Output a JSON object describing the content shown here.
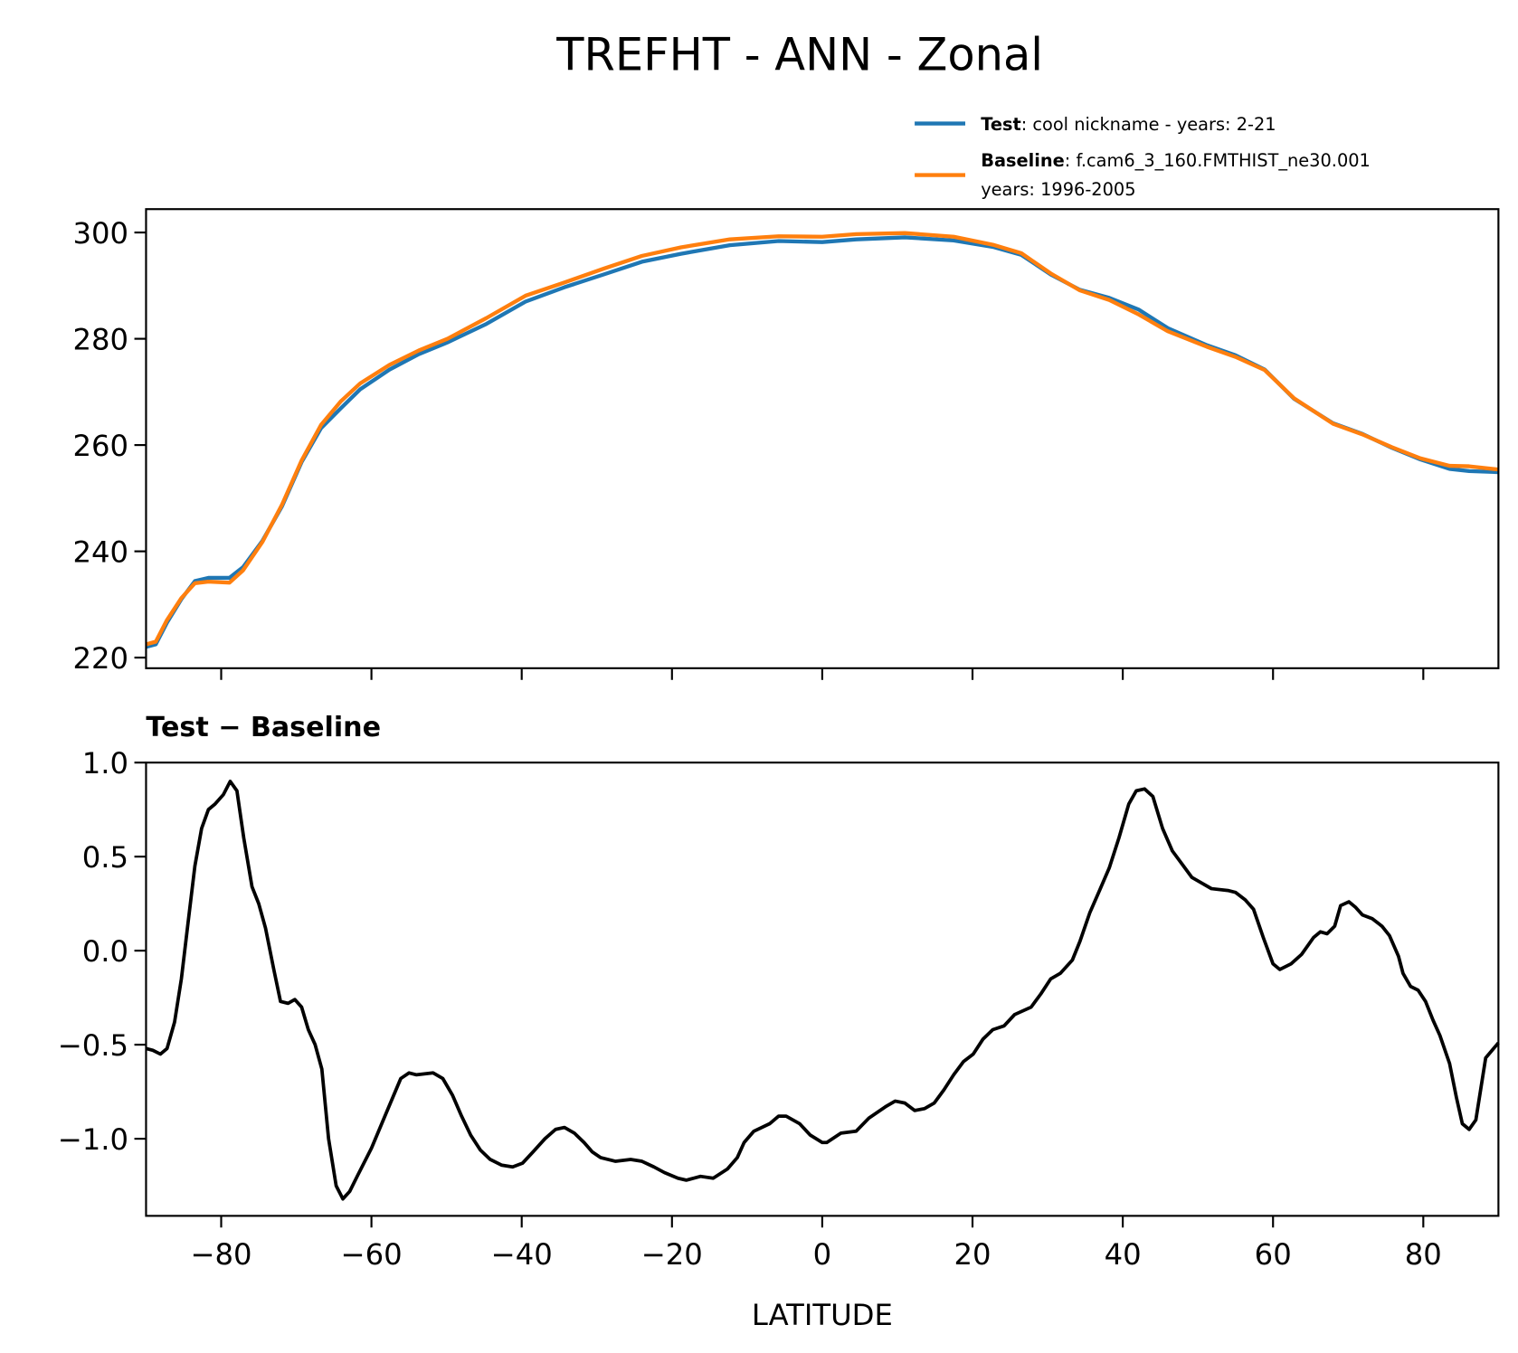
{
  "title": "TREFHT - ANN - Zonal",
  "legend": {
    "test_label": "Test",
    "test_text": ": cool nickname - years: 2-21",
    "baseline_label": "Baseline",
    "baseline_text": ": f.cam6_3_160.FMTHIST_ne30.001",
    "baseline_text2": "years: 1996-2005"
  },
  "colors": {
    "test": "#1f77b4",
    "baseline": "#ff7f0e",
    "diff": "#000000"
  },
  "chart_data": [
    {
      "type": "line",
      "title": "",
      "xlabel": "",
      "ylabel": "",
      "xlim": [
        -90,
        90
      ],
      "ylim": [
        218,
        304.4
      ],
      "xticks": [
        -80,
        -60,
        -40,
        -20,
        0,
        20,
        40,
        60,
        80
      ],
      "yticks": [
        220,
        240,
        260,
        280,
        300
      ],
      "legend_position": "above-right",
      "series": [
        {
          "name": "Test",
          "x": [
            -90,
            -88.7,
            -87.2,
            -85.3,
            -83.5,
            -81.7,
            -78.9,
            -77.1,
            -74.5,
            -71.9,
            -69.3,
            -66.7,
            -64.1,
            -61.5,
            -57.6,
            -53.7,
            -49.9,
            -44.7,
            -39.5,
            -34.3,
            -29.1,
            -24,
            -18.8,
            -12.3,
            -5.8,
            0,
            4.5,
            11,
            17.5,
            22.7,
            26.5,
            30.4,
            34.3,
            38.2,
            42.1,
            46,
            51.2,
            55,
            58.9,
            62.8,
            68,
            71.9,
            75.8,
            79.6,
            83.5,
            86.1,
            90
          ],
          "y": [
            222,
            222.5,
            226.6,
            231,
            234.4,
            235,
            235,
            237,
            242,
            248.5,
            256.8,
            263.2,
            266.9,
            270.5,
            274.2,
            277.1,
            279.3,
            282.8,
            287,
            289.7,
            292.1,
            294.5,
            296,
            297.6,
            298.4,
            298.2,
            298.7,
            299.1,
            298.5,
            297.3,
            295.8,
            292.1,
            289.2,
            287.7,
            285.5,
            282,
            278.8,
            276.9,
            274.2,
            268.7,
            264.1,
            262.1,
            259.5,
            257.3,
            255.5,
            255.1,
            254.9
          ]
        },
        {
          "name": "Baseline",
          "x": [
            -90,
            -88.7,
            -87.2,
            -85.3,
            -83.5,
            -81.7,
            -78.9,
            -77.1,
            -74.5,
            -71.9,
            -69.3,
            -66.7,
            -64.1,
            -61.5,
            -57.6,
            -53.7,
            -49.9,
            -44.7,
            -39.5,
            -34.3,
            -29.1,
            -24,
            -18.8,
            -12.3,
            -5.8,
            0,
            4.5,
            11,
            17.5,
            22.7,
            26.5,
            30.4,
            34.3,
            38.2,
            42.1,
            46,
            51.2,
            55,
            58.9,
            62.8,
            68,
            71.9,
            75.8,
            79.6,
            83.5,
            86.1,
            90
          ],
          "y": [
            222.5,
            223,
            227.1,
            231.2,
            234,
            234.3,
            234.1,
            236.4,
            241.8,
            248.8,
            257.1,
            263.8,
            268.2,
            271.6,
            275.1,
            277.8,
            280,
            283.9,
            288.1,
            290.6,
            293.2,
            295.6,
            297.2,
            298.7,
            299.3,
            299.2,
            299.7,
            299.9,
            299.2,
            297.7,
            296.1,
            292.3,
            289.1,
            287.3,
            284.6,
            281.4,
            278.5,
            276.6,
            274.1,
            268.8,
            264,
            262,
            259.6,
            257.5,
            256.1,
            256,
            255.4
          ]
        }
      ]
    },
    {
      "type": "line",
      "title": "Test − Baseline",
      "xlabel": "LATITUDE",
      "ylabel": "",
      "xlim": [
        -90,
        90
      ],
      "ylim": [
        -1.41,
        1.0
      ],
      "xticks": [
        -80,
        -60,
        -40,
        -20,
        0,
        20,
        40,
        60,
        80
      ],
      "xticklabels": [
        "−80",
        "−60",
        "−40",
        "−20",
        "0",
        "20",
        "40",
        "60",
        "80"
      ],
      "yticks": [
        1.0,
        0.5,
        0.0,
        -0.5,
        -1.0
      ],
      "yticklabels": [
        "1.0",
        "0.5",
        "0.0",
        "−0.5",
        "−1.0"
      ],
      "series": [
        {
          "name": "Test - Baseline",
          "x": [
            -90,
            -89.1,
            -88.1,
            -87.2,
            -86.2,
            -85.3,
            -84.4,
            -83.5,
            -82.6,
            -81.7,
            -80.8,
            -79.7,
            -78.8,
            -77.9,
            -77.0,
            -75.9,
            -75.0,
            -74.1,
            -73.0,
            -72.1,
            -71.1,
            -70.2,
            -69.3,
            -68.4,
            -67.5,
            -66.6,
            -65.7,
            -64.7,
            -63.8,
            -62.9,
            -61.9,
            -60.0,
            -58.0,
            -56.1,
            -55.0,
            -54.0,
            -51.8,
            -50.5,
            -49.2,
            -48.0,
            -46.8,
            -45.5,
            -44.2,
            -42.7,
            -41.2,
            -39.9,
            -38.5,
            -36.9,
            -35.5,
            -34.3,
            -33.0,
            -31.7,
            -30.6,
            -29.5,
            -27.5,
            -25.5,
            -24.0,
            -22.4,
            -21.0,
            -19.2,
            -18.1,
            -17.1,
            -16.2,
            -14.5,
            -12.6,
            -11.3,
            -10.4,
            -9.1,
            -7.0,
            -5.8,
            -4.8,
            -3.0,
            -1.6,
            0,
            0.6,
            2.5,
            4.5,
            6.2,
            8.4,
            9.7,
            11.0,
            12.3,
            13.6,
            14.9,
            16.2,
            17.5,
            18.8,
            20.1,
            21.4,
            22.7,
            24.2,
            25.6,
            27.8,
            29.1,
            30.4,
            31.7,
            33.3,
            34.3,
            35.6,
            36.9,
            38.2,
            39.5,
            40.8,
            41.8,
            42.9,
            44.0,
            45.3,
            46.6,
            47.9,
            49.2,
            50.5,
            51.8,
            54.0,
            55.0,
            56.3,
            57.4,
            58.7,
            60.0,
            60.9,
            62.4,
            63.8,
            65.4,
            66.3,
            67.2,
            68.2,
            69.0,
            70.1,
            71.0,
            71.9,
            73.2,
            74.5,
            75.5,
            76.7,
            77.3,
            78.3,
            79.3,
            80.3,
            81.3,
            82.2,
            83.5,
            84.4,
            85.2,
            86.1,
            87.0,
            88.3,
            90
          ],
          "y": [
            -0.52,
            -0.53,
            -0.55,
            -0.52,
            -0.38,
            -0.15,
            0.15,
            0.45,
            0.65,
            0.75,
            0.78,
            0.83,
            0.9,
            0.85,
            0.6,
            0.34,
            0.25,
            0.12,
            -0.1,
            -0.27,
            -0.28,
            -0.26,
            -0.3,
            -0.42,
            -0.5,
            -0.63,
            -1.0,
            -1.25,
            -1.32,
            -1.28,
            -1.2,
            -1.05,
            -0.86,
            -0.68,
            -0.65,
            -0.66,
            -0.65,
            -0.68,
            -0.77,
            -0.88,
            -0.98,
            -1.06,
            -1.11,
            -1.14,
            -1.15,
            -1.13,
            -1.07,
            -1.0,
            -0.95,
            -0.94,
            -0.97,
            -1.02,
            -1.07,
            -1.1,
            -1.12,
            -1.11,
            -1.12,
            -1.15,
            -1.18,
            -1.21,
            -1.22,
            -1.21,
            -1.2,
            -1.21,
            -1.16,
            -1.1,
            -1.02,
            -0.96,
            -0.92,
            -0.88,
            -0.88,
            -0.92,
            -0.98,
            -1.02,
            -1.02,
            -0.97,
            -0.96,
            -0.89,
            -0.83,
            -0.8,
            -0.81,
            -0.85,
            -0.84,
            -0.81,
            -0.74,
            -0.66,
            -0.59,
            -0.55,
            -0.47,
            -0.42,
            -0.4,
            -0.34,
            -0.3,
            -0.23,
            -0.15,
            -0.12,
            -0.05,
            0.05,
            0.2,
            0.32,
            0.44,
            0.6,
            0.78,
            0.85,
            0.86,
            0.82,
            0.65,
            0.53,
            0.46,
            0.39,
            0.36,
            0.33,
            0.32,
            0.31,
            0.27,
            0.22,
            0.07,
            -0.07,
            -0.1,
            -0.07,
            -0.02,
            0.07,
            0.1,
            0.09,
            0.13,
            0.24,
            0.26,
            0.23,
            0.19,
            0.17,
            0.13,
            0.08,
            -0.03,
            -0.12,
            -0.19,
            -0.21,
            -0.27,
            -0.37,
            -0.45,
            -0.6,
            -0.78,
            -0.92,
            -0.95,
            -0.9,
            -0.57,
            -0.49
          ]
        }
      ]
    }
  ]
}
